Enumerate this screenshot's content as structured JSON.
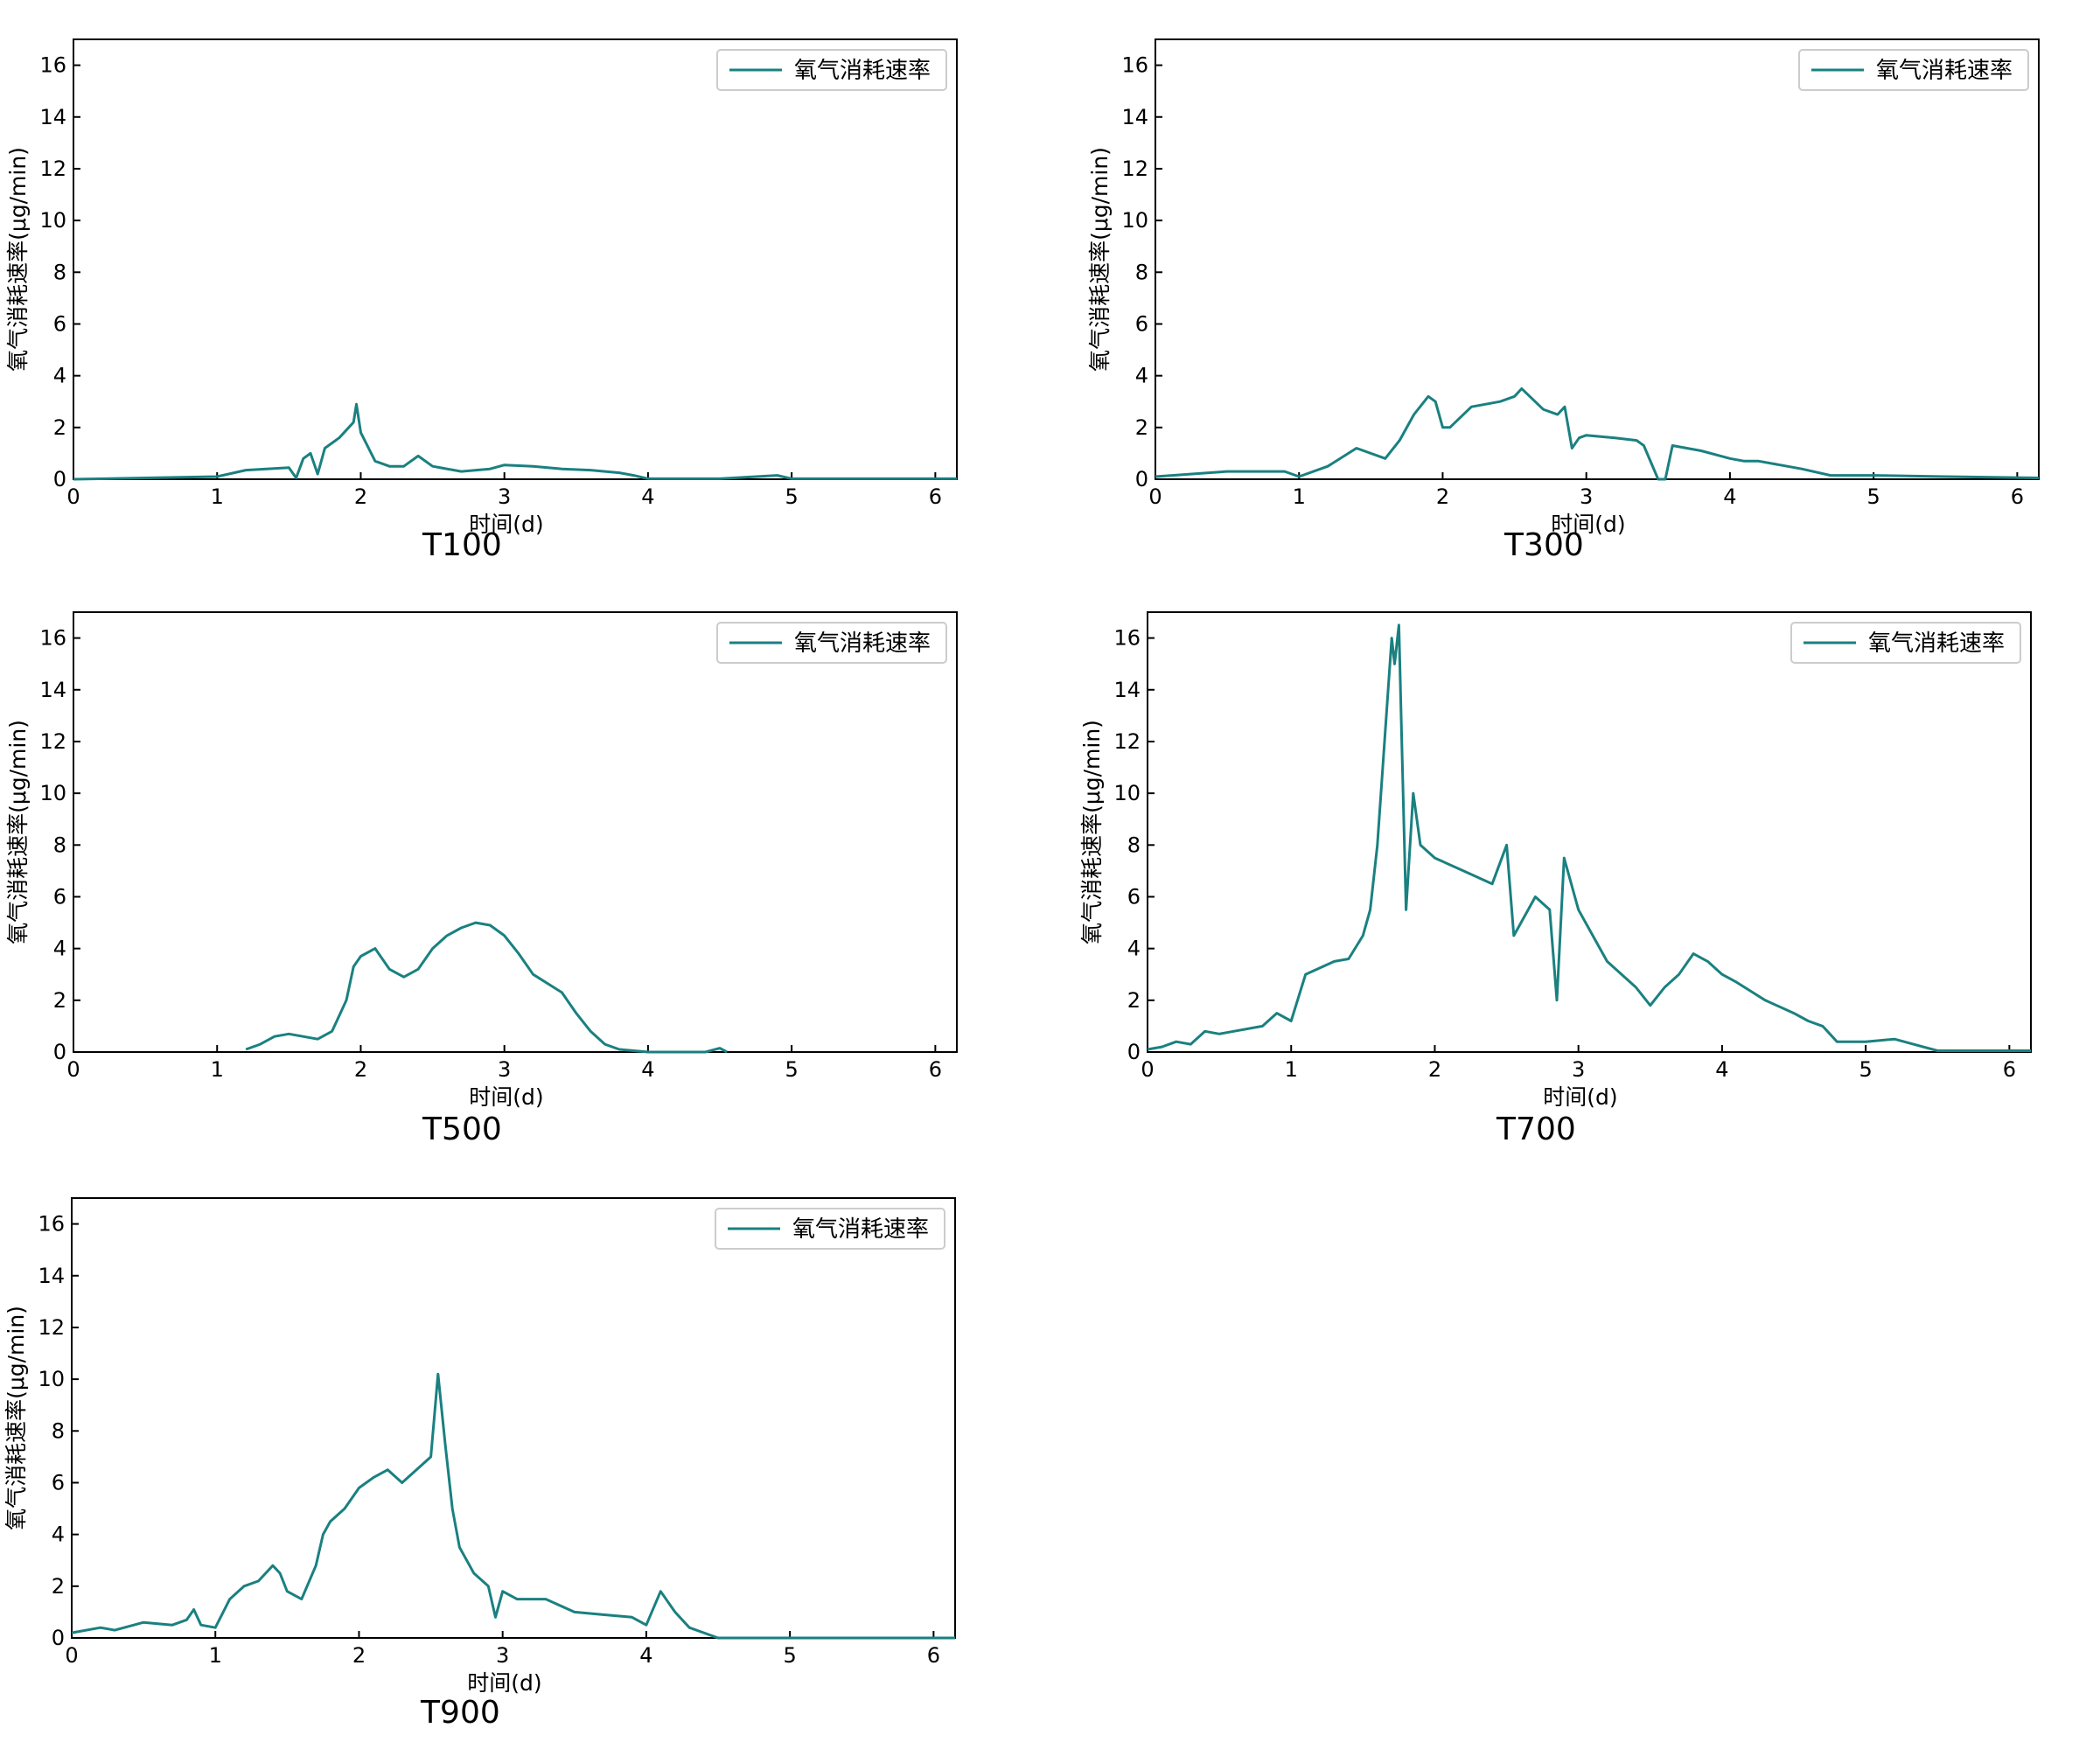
{
  "figure": {
    "series_color": "#1a8080"
  },
  "chart_data": [
    {
      "type": "line",
      "title": "T100",
      "xlabel": "时间(d)",
      "ylabel": "氧气消耗速率(μg/min)",
      "xlim": [
        0,
        6.15
      ],
      "ylim": [
        0,
        17
      ],
      "xticks": [
        "0",
        "1",
        "2",
        "3",
        "4",
        "5",
        "6"
      ],
      "yticks": [
        "0",
        "2",
        "4",
        "6",
        "8",
        "10",
        "12",
        "14",
        "16"
      ],
      "legend": "氧气消耗速率",
      "legend_position": "top-right",
      "series": [
        {
          "name": "氧气消耗速率",
          "x": [
            0,
            0.5,
            1.0,
            1.2,
            1.5,
            1.55,
            1.6,
            1.65,
            1.7,
            1.75,
            1.8,
            1.85,
            1.9,
            1.95,
            1.97,
            2.0,
            2.1,
            2.2,
            2.3,
            2.4,
            2.5,
            2.7,
            2.9,
            3.0,
            3.2,
            3.4,
            3.6,
            3.8,
            3.9,
            4.0,
            4.5,
            4.9,
            5.0,
            5.5,
            6.15
          ],
          "y": [
            0,
            0.05,
            0.1,
            0.35,
            0.45,
            0.05,
            0.8,
            1.0,
            0.2,
            1.2,
            1.4,
            1.6,
            1.9,
            2.2,
            2.9,
            1.8,
            0.7,
            0.5,
            0.5,
            0.9,
            0.5,
            0.3,
            0.4,
            0.55,
            0.5,
            0.4,
            0.35,
            0.25,
            0.15,
            0.02,
            0.02,
            0.15,
            0.02,
            0.02,
            0.02
          ]
        }
      ]
    },
    {
      "type": "line",
      "title": "T300",
      "xlabel": "时间(d)",
      "ylabel": "氧气消耗速率(μg/min)",
      "xlim": [
        0,
        6.15
      ],
      "ylim": [
        0,
        17
      ],
      "xticks": [
        "0",
        "1",
        "2",
        "3",
        "4",
        "5",
        "6"
      ],
      "yticks": [
        "0",
        "2",
        "4",
        "6",
        "8",
        "10",
        "12",
        "14",
        "16"
      ],
      "legend": "氧气消耗速率",
      "legend_position": "top-right",
      "series": [
        {
          "name": "氧气消耗速率",
          "x": [
            0,
            0.5,
            0.9,
            1.0,
            1.2,
            1.4,
            1.6,
            1.7,
            1.8,
            1.9,
            1.95,
            2.0,
            2.05,
            2.2,
            2.4,
            2.5,
            2.55,
            2.7,
            2.8,
            2.85,
            2.9,
            2.95,
            3.0,
            3.2,
            3.35,
            3.4,
            3.5,
            3.55,
            3.6,
            3.8,
            4.0,
            4.1,
            4.2,
            4.5,
            4.7,
            5.0,
            5.5,
            6.15
          ],
          "y": [
            0.1,
            0.3,
            0.3,
            0.1,
            0.5,
            1.2,
            0.8,
            1.5,
            2.5,
            3.2,
            3.0,
            2.0,
            2.0,
            2.8,
            3.0,
            3.2,
            3.5,
            2.7,
            2.5,
            2.8,
            1.2,
            1.6,
            1.7,
            1.6,
            1.5,
            1.3,
            0,
            0,
            1.3,
            1.1,
            0.8,
            0.7,
            0.7,
            0.4,
            0.15,
            0.15,
            0.1,
            0.05
          ]
        }
      ]
    },
    {
      "type": "line",
      "title": "T500",
      "xlabel": "时间(d)",
      "ylabel": "氧气消耗速率(μg/min)",
      "xlim": [
        0,
        6.15
      ],
      "ylim": [
        0,
        17
      ],
      "xticks": [
        "0",
        "1",
        "2",
        "3",
        "4",
        "5",
        "6"
      ],
      "yticks": [
        "0",
        "2",
        "4",
        "6",
        "8",
        "10",
        "12",
        "14",
        "16"
      ],
      "legend": "氧气消耗速率",
      "legend_position": "top-right",
      "series": [
        {
          "name": "氧气消耗速率",
          "x": [
            1.2,
            1.3,
            1.4,
            1.5,
            1.7,
            1.8,
            1.9,
            1.95,
            2.0,
            2.1,
            2.2,
            2.3,
            2.4,
            2.5,
            2.6,
            2.7,
            2.8,
            2.9,
            3.0,
            3.1,
            3.2,
            3.4,
            3.5,
            3.6,
            3.7,
            3.8,
            4.0,
            4.4,
            4.5,
            4.55
          ],
          "y": [
            0.1,
            0.3,
            0.6,
            0.7,
            0.5,
            0.8,
            2.0,
            3.3,
            3.7,
            4.0,
            3.2,
            2.9,
            3.2,
            4.0,
            4.5,
            4.8,
            5.0,
            4.9,
            4.5,
            3.8,
            3.0,
            2.3,
            1.5,
            0.8,
            0.3,
            0.1,
            0,
            0,
            0.15,
            0
          ]
        }
      ]
    },
    {
      "type": "line",
      "title": "T700",
      "xlabel": "时间(d)",
      "ylabel": "氧气消耗速率(μg/min)",
      "xlim": [
        0,
        6.15
      ],
      "ylim": [
        0,
        17
      ],
      "xticks": [
        "0",
        "1",
        "2",
        "3",
        "4",
        "5",
        "6"
      ],
      "yticks": [
        "0",
        "2",
        "4",
        "6",
        "8",
        "10",
        "12",
        "14",
        "16"
      ],
      "legend": "氧气消耗速率",
      "legend_position": "top-right",
      "series": [
        {
          "name": "氧气消耗速率",
          "x": [
            0,
            0.1,
            0.2,
            0.3,
            0.4,
            0.5,
            0.6,
            0.8,
            0.9,
            1.0,
            1.1,
            1.3,
            1.4,
            1.5,
            1.55,
            1.6,
            1.65,
            1.7,
            1.72,
            1.75,
            1.77,
            1.8,
            1.85,
            1.9,
            2.0,
            2.2,
            2.4,
            2.5,
            2.55,
            2.6,
            2.7,
            2.8,
            2.85,
            2.9,
            2.95,
            3.0,
            3.1,
            3.2,
            3.4,
            3.5,
            3.6,
            3.7,
            3.8,
            3.9,
            4.0,
            4.1,
            4.3,
            4.5,
            4.6,
            4.7,
            4.8,
            5.0,
            5.2,
            5.4,
            5.5,
            6.15
          ],
          "y": [
            0.1,
            0.2,
            0.4,
            0.3,
            0.8,
            0.7,
            0.8,
            1.0,
            1.5,
            1.2,
            3.0,
            3.5,
            3.6,
            4.5,
            5.5,
            8.0,
            12.0,
            16.0,
            15.0,
            16.5,
            12.0,
            5.5,
            10.0,
            8.0,
            7.5,
            7.0,
            6.5,
            8.0,
            4.5,
            5.0,
            6.0,
            5.5,
            2.0,
            7.5,
            6.5,
            5.5,
            4.5,
            3.5,
            2.5,
            1.8,
            2.5,
            3.0,
            3.8,
            3.5,
            3.0,
            2.7,
            2.0,
            1.5,
            1.2,
            1.0,
            0.4,
            0.4,
            0.5,
            0.2,
            0.05,
            0.05
          ]
        }
      ]
    },
    {
      "type": "line",
      "title": "T900",
      "xlabel": "时间(d)",
      "ylabel": "氧气消耗速率(μg/min)",
      "xlim": [
        0,
        6.15
      ],
      "ylim": [
        0,
        17
      ],
      "xticks": [
        "0",
        "1",
        "2",
        "3",
        "4",
        "5",
        "6"
      ],
      "yticks": [
        "0",
        "2",
        "4",
        "6",
        "8",
        "10",
        "12",
        "14",
        "16"
      ],
      "legend": "氧气消耗速率",
      "legend_position": "top-right",
      "series": [
        {
          "name": "氧气消耗速率",
          "x": [
            0,
            0.2,
            0.3,
            0.5,
            0.7,
            0.8,
            0.85,
            0.9,
            1.0,
            1.1,
            1.2,
            1.3,
            1.4,
            1.45,
            1.5,
            1.6,
            1.7,
            1.75,
            1.8,
            1.9,
            2.0,
            2.1,
            2.2,
            2.3,
            2.4,
            2.5,
            2.55,
            2.6,
            2.65,
            2.7,
            2.8,
            2.9,
            2.95,
            3.0,
            3.1,
            3.3,
            3.5,
            3.7,
            3.9,
            4.0,
            4.1,
            4.2,
            4.3,
            4.5,
            5.0,
            6.15
          ],
          "y": [
            0.2,
            0.4,
            0.3,
            0.6,
            0.5,
            0.7,
            1.1,
            0.5,
            0.4,
            1.5,
            2.0,
            2.2,
            2.8,
            2.5,
            1.8,
            1.5,
            2.8,
            4.0,
            4.5,
            5.0,
            5.8,
            6.2,
            6.5,
            6.0,
            6.5,
            7.0,
            10.2,
            7.5,
            5.0,
            3.5,
            2.5,
            2.0,
            0.8,
            1.8,
            1.5,
            1.5,
            1.0,
            0.9,
            0.8,
            0.5,
            1.8,
            1.0,
            0.4,
            0,
            0,
            0
          ]
        }
      ]
    }
  ]
}
